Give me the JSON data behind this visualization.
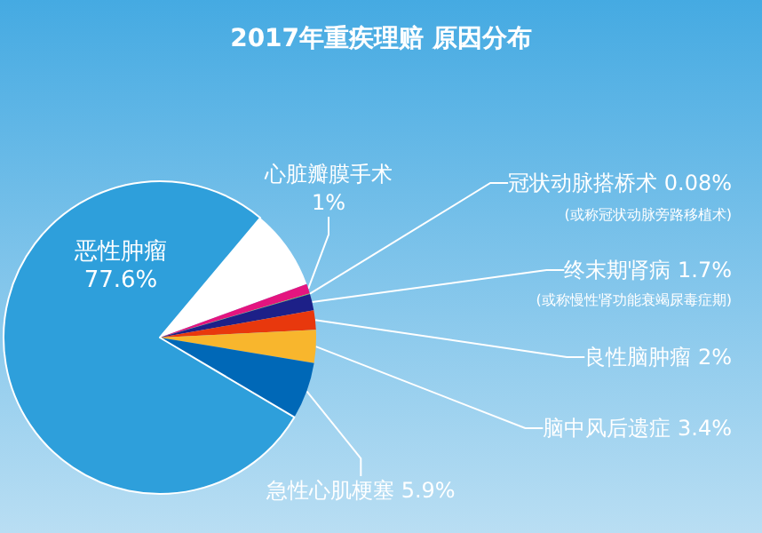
{
  "chart_data": {
    "type": "pie",
    "title": "2017年重疾理赔 原因分布",
    "categories": [
      null,
      "心脏瓣膜手术",
      "冠状动脉搭桥术",
      "终末期肾病",
      "良性脑肿瘤",
      "脑中风后遗症",
      "急性心肌梗塞",
      "恶性肿瘤"
    ],
    "values": [
      8.32,
      1,
      0.08,
      1.7,
      2,
      3.4,
      5.9,
      77.6
    ],
    "value_labels": [
      null,
      "1%",
      "0.08%",
      "1.7%",
      "2%",
      "3.4%",
      "5.9%",
      "77.6%"
    ],
    "colors": [
      "#ffffff",
      "#e4157f",
      "#8cc63f",
      "#1d2088",
      "#e8380d",
      "#f8b62d",
      "#0068b7",
      "#2e9fdb"
    ],
    "annotations": [
      "(或称冠状动脉旁路移植术)",
      "(或称慢性肾功能衰竭尿毒症期)"
    ],
    "legend": false
  }
}
